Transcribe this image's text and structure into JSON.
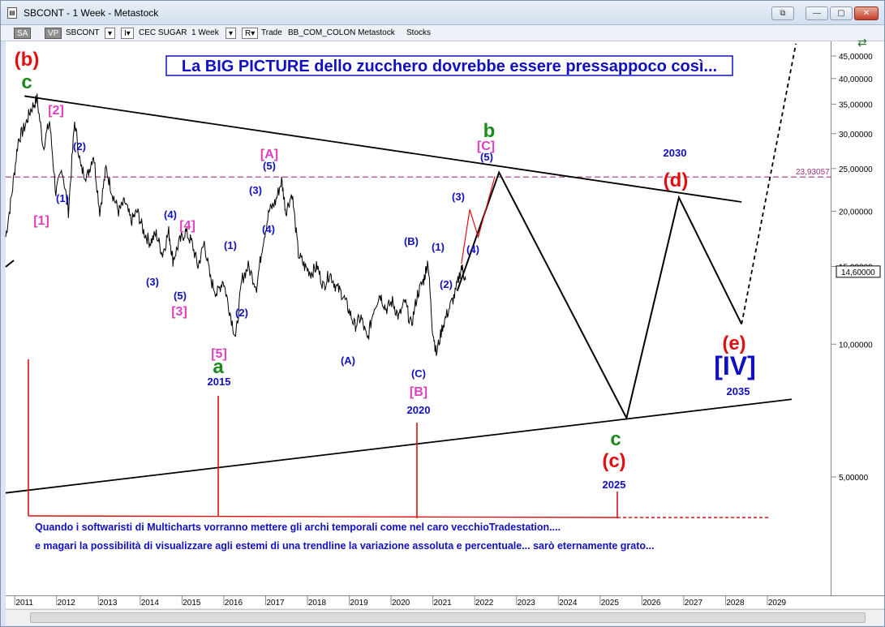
{
  "window": {
    "title": "SBCONT - 1 Week - Metastock",
    "icon": "document-icon"
  },
  "toolbar": {
    "sa": "SA",
    "vp": "VP",
    "symbol": "SBCONT",
    "dropdown_marker": "▾",
    "i_marker": "I▾",
    "description": "CEC SUGAR",
    "interval": "1 Week",
    "r_marker": "R▾",
    "trade": "Trade",
    "data_source": "BB_COM_COLON Metastock",
    "asset_class": "Stocks"
  },
  "colors": {
    "price": "#000000",
    "red": "#e01010",
    "green": "#1a8a1a",
    "magenta": "#e040c0",
    "blue": "#1010c0",
    "resistance": "#a03080"
  },
  "annotation_box": "La BIG PICTURE dello zucchero dovrebbe essere pressappoco così...",
  "footer_note": {
    "line1": "Quando i softwaristi di Multicharts vorranno mettere gli archi temporali come nel caro vecchioTradestation....",
    "line2": "e magari la possibilità di visualizzare agli estemi di una trendline la variazione assoluta e percentuale... sarò eternamente grato..."
  },
  "price_labels": {
    "current": "14,60000",
    "resistance": "23,93057"
  },
  "chart_data": {
    "type": "line",
    "scale": "log",
    "x_ticks": [
      "2011",
      "2012",
      "2013",
      "2014",
      "2015",
      "2016",
      "2017",
      "2018",
      "2019",
      "2020",
      "2021",
      "2022",
      "2023",
      "2024",
      "2025",
      "2026",
      "2027",
      "2028",
      "2029"
    ],
    "y_ticks": [
      "45,00000",
      "40,00000",
      "35,00000",
      "30,00000",
      "25,00000",
      "20,00000",
      "15,00000",
      "10,00000",
      "5,00000"
    ],
    "y_values": [
      45,
      40,
      35,
      30,
      25,
      20,
      15,
      10,
      5
    ],
    "series": [
      {
        "values": [
          [
            2010.0,
            17.5
          ],
          [
            2010.15,
            22
          ],
          [
            2010.3,
            29
          ],
          [
            2010.45,
            31
          ],
          [
            2010.6,
            34
          ],
          [
            2010.75,
            36
          ],
          [
            2010.9,
            28
          ],
          [
            2011.05,
            32
          ],
          [
            2011.2,
            22
          ],
          [
            2011.35,
            25
          ],
          [
            2011.5,
            20
          ],
          [
            2011.65,
            32
          ],
          [
            2011.8,
            25
          ],
          [
            2011.95,
            24
          ],
          [
            2012.1,
            27
          ],
          [
            2012.25,
            20
          ],
          [
            2012.4,
            25
          ],
          [
            2012.55,
            22
          ],
          [
            2012.7,
            20
          ],
          [
            2012.85,
            21
          ],
          [
            2013.0,
            19
          ],
          [
            2013.15,
            20
          ],
          [
            2013.3,
            18
          ],
          [
            2013.45,
            17
          ],
          [
            2013.6,
            17.8
          ],
          [
            2013.75,
            16
          ],
          [
            2013.9,
            18
          ],
          [
            2014.0,
            15.5
          ],
          [
            2014.15,
            17
          ],
          [
            2014.3,
            18
          ],
          [
            2014.45,
            17
          ],
          [
            2014.6,
            15
          ],
          [
            2014.75,
            17
          ],
          [
            2014.9,
            14
          ],
          [
            2015.05,
            13
          ],
          [
            2015.2,
            14
          ],
          [
            2015.35,
            12
          ],
          [
            2015.5,
            10.3
          ],
          [
            2015.65,
            14
          ],
          [
            2015.8,
            15
          ],
          [
            2016.0,
            13.5
          ],
          [
            2016.15,
            17
          ],
          [
            2016.3,
            20
          ],
          [
            2016.45,
            21
          ],
          [
            2016.6,
            23.5
          ],
          [
            2016.7,
            20
          ],
          [
            2016.85,
            22
          ],
          [
            2017.0,
            16
          ],
          [
            2017.15,
            15
          ],
          [
            2017.3,
            14.5
          ],
          [
            2017.45,
            15
          ],
          [
            2017.6,
            13.5
          ],
          [
            2017.75,
            14.5
          ],
          [
            2017.9,
            13.5
          ],
          [
            2018.05,
            13
          ],
          [
            2018.2,
            12
          ],
          [
            2018.35,
            11
          ],
          [
            2018.5,
            11.5
          ],
          [
            2018.65,
            10.2
          ],
          [
            2018.8,
            12
          ],
          [
            2018.95,
            13
          ],
          [
            2019.1,
            12
          ],
          [
            2019.25,
            12.5
          ],
          [
            2019.4,
            11.5
          ],
          [
            2019.55,
            12.5
          ],
          [
            2019.7,
            11
          ],
          [
            2019.85,
            13
          ],
          [
            2020.0,
            14
          ],
          [
            2020.1,
            15.5
          ],
          [
            2020.2,
            11
          ],
          [
            2020.3,
            9.5
          ],
          [
            2020.45,
            11
          ],
          [
            2020.6,
            12
          ],
          [
            2020.75,
            13
          ],
          [
            2020.9,
            15
          ],
          [
            2021.0,
            14
          ]
        ]
      },
      {
        "name": "projection",
        "values": [
          [
            2020.8,
            13.2
          ],
          [
            2021.8,
            24.5
          ],
          [
            2024.85,
            6.8
          ],
          [
            2026.1,
            21.5
          ],
          [
            2027.6,
            11.1
          ]
        ]
      },
      {
        "name": "projection-dashed",
        "values": [
          [
            2027.6,
            11.1
          ],
          [
            2028.9,
            48
          ]
        ]
      },
      {
        "name": "red-subwave",
        "values": [
          [
            2020.9,
            15.2
          ],
          [
            2021.1,
            20.2
          ],
          [
            2021.3,
            17.5
          ],
          [
            2021.7,
            24.0
          ]
        ]
      }
    ],
    "trendlines": [
      {
        "name": "upper",
        "values": [
          [
            2010.45,
            36.5
          ],
          [
            2027.6,
            21
          ]
        ]
      },
      {
        "name": "lower",
        "values": [
          [
            2010.0,
            4.6
          ],
          [
            2028.8,
            7.5
          ]
        ]
      },
      {
        "name": "resistance",
        "values": [
          [
            2010.0,
            23.93057
          ],
          [
            2029.5,
            23.93057
          ]
        ]
      }
    ]
  },
  "wave_labels": [
    {
      "text": "(b)",
      "color": "red",
      "size": "big"
    },
    {
      "text": "c",
      "color": "green",
      "size": "big"
    },
    {
      "text": "[2]",
      "color": "magenta",
      "size": "med"
    },
    {
      "text": "(2)",
      "color": "blue",
      "size": "small"
    },
    {
      "text": "(1)",
      "color": "blue",
      "size": "small"
    },
    {
      "text": "[1]",
      "color": "magenta",
      "size": "med"
    },
    {
      "text": "(4)",
      "color": "blue",
      "size": "small"
    },
    {
      "text": "[4]",
      "color": "magenta",
      "size": "med"
    },
    {
      "text": "(3)",
      "color": "blue",
      "size": "small"
    },
    {
      "text": "(5)",
      "color": "blue",
      "size": "small"
    },
    {
      "text": "[3]",
      "color": "magenta",
      "size": "med"
    },
    {
      "text": "(1)",
      "color": "blue",
      "size": "small"
    },
    {
      "text": "(2)",
      "color": "blue",
      "size": "small"
    },
    {
      "text": "[5]",
      "color": "magenta",
      "size": "med"
    },
    {
      "text": "a",
      "color": "green",
      "size": "big"
    },
    {
      "text": "2015",
      "color": "blue",
      "size": "small"
    },
    {
      "text": "[A]",
      "color": "magenta",
      "size": "med"
    },
    {
      "text": "(5)",
      "color": "blue",
      "size": "small"
    },
    {
      "text": "(3)",
      "color": "blue",
      "size": "small"
    },
    {
      "text": "(4)",
      "color": "blue",
      "size": "small"
    },
    {
      "text": "(A)",
      "color": "blue",
      "size": "small"
    },
    {
      "text": "(B)",
      "color": "blue",
      "size": "small"
    },
    {
      "text": "(1)",
      "color": "blue",
      "size": "small"
    },
    {
      "text": "(2)",
      "color": "blue",
      "size": "small"
    },
    {
      "text": "(C)",
      "color": "blue",
      "size": "small"
    },
    {
      "text": "[B]",
      "color": "magenta",
      "size": "med"
    },
    {
      "text": "2020",
      "color": "blue",
      "size": "small"
    },
    {
      "text": "(3)",
      "color": "blue",
      "size": "small"
    },
    {
      "text": "(4)",
      "color": "blue",
      "size": "small"
    },
    {
      "text": "b",
      "color": "green",
      "size": "big"
    },
    {
      "text": "[C]",
      "color": "magenta",
      "size": "med"
    },
    {
      "text": "(5)",
      "color": "blue",
      "size": "small"
    },
    {
      "text": "c",
      "color": "green",
      "size": "big"
    },
    {
      "text": "(c)",
      "color": "red",
      "size": "big"
    },
    {
      "text": "2025",
      "color": "blue",
      "size": "small"
    },
    {
      "text": "2030",
      "color": "blue",
      "size": "small"
    },
    {
      "text": "(d)",
      "color": "red",
      "size": "big"
    },
    {
      "text": "(e)",
      "color": "red",
      "size": "big"
    },
    {
      "text": "[IV]",
      "color": "blue",
      "size": "huge"
    },
    {
      "text": "2035",
      "color": "blue",
      "size": "small"
    }
  ]
}
